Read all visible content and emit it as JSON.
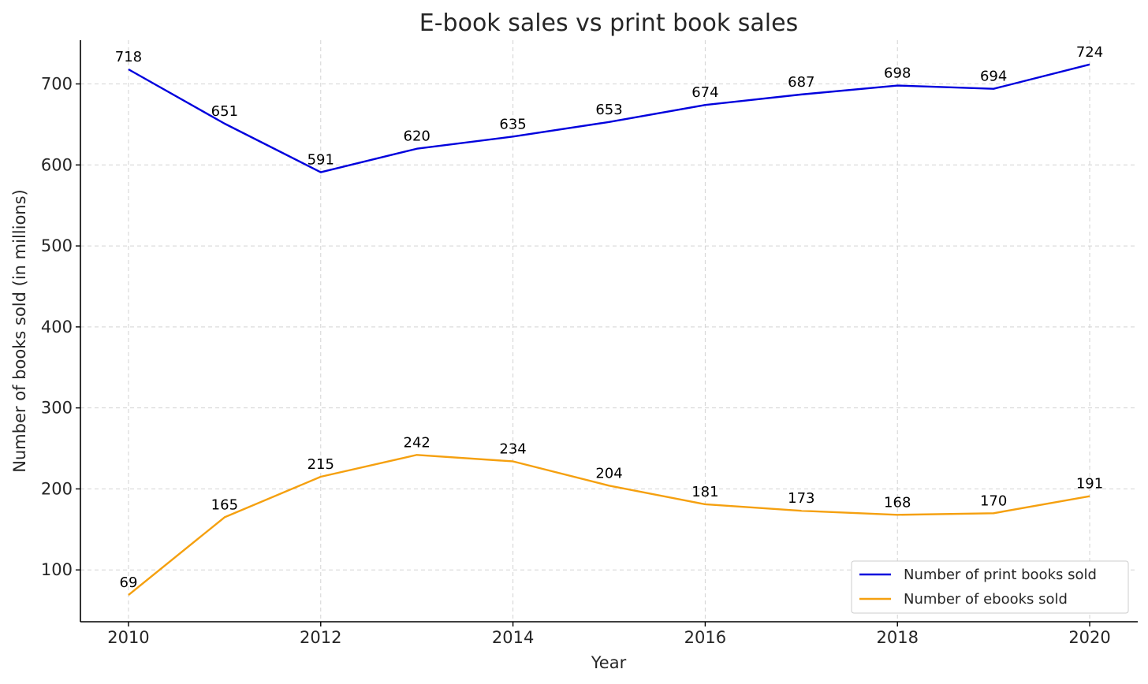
{
  "chart_data": {
    "type": "line",
    "title": "E-book sales vs print book sales",
    "xlabel": "Year",
    "ylabel": "Number of books sold (in millions)",
    "x": [
      2010,
      2011,
      2012,
      2013,
      2014,
      2015,
      2016,
      2017,
      2018,
      2019,
      2020
    ],
    "x_ticks": [
      2010,
      2012,
      2014,
      2016,
      2018,
      2020
    ],
    "y_ticks": [
      100,
      200,
      300,
      400,
      500,
      600,
      700
    ],
    "xlim": [
      2009.5,
      2020.5
    ],
    "ylim": [
      36,
      754
    ],
    "grid": true,
    "legend_position": "lower-right",
    "series": [
      {
        "name": "Number of print books sold",
        "color": "#0000dd",
        "values": [
          718,
          651,
          591,
          620,
          635,
          653,
          674,
          687,
          698,
          694,
          724
        ]
      },
      {
        "name": "Number of ebooks sold",
        "color": "#f5a00f",
        "values": [
          69,
          165,
          215,
          242,
          234,
          204,
          181,
          173,
          168,
          170,
          191
        ]
      }
    ]
  }
}
